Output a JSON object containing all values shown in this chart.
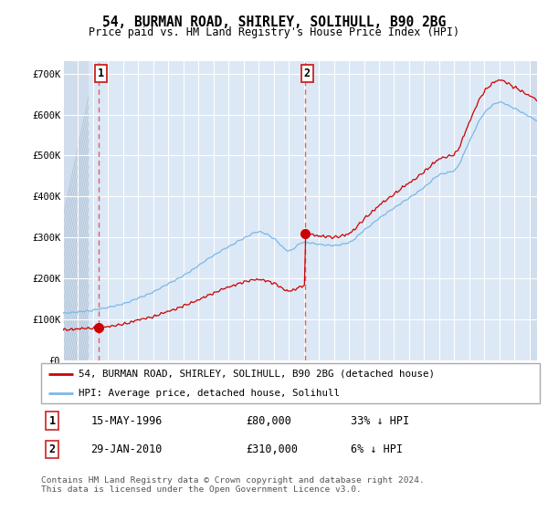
{
  "title": "54, BURMAN ROAD, SHIRLEY, SOLIHULL, B90 2BG",
  "subtitle": "Price paid vs. HM Land Registry's House Price Index (HPI)",
  "ylim": [
    0,
    730000
  ],
  "xlim": [
    1994.0,
    2025.5
  ],
  "yticks": [
    0,
    100000,
    200000,
    300000,
    400000,
    500000,
    600000,
    700000
  ],
  "ytick_labels": [
    "£0",
    "£100K",
    "£200K",
    "£300K",
    "£400K",
    "£500K",
    "£600K",
    "£700K"
  ],
  "sale1_x": 1996.37,
  "sale1_y": 80000,
  "sale2_x": 2010.08,
  "sale2_y": 310000,
  "hpi_color": "#7ab8e8",
  "sale_color": "#cc0000",
  "marker_color": "#cc0000",
  "vline_color": "#e06060",
  "legend_label1": "54, BURMAN ROAD, SHIRLEY, SOLIHULL, B90 2BG (detached house)",
  "legend_label2": "HPI: Average price, detached house, Solihull",
  "table_row1": [
    "1",
    "15-MAY-1996",
    "£80,000",
    "33% ↓ HPI"
  ],
  "table_row2": [
    "2",
    "29-JAN-2010",
    "£310,000",
    "6% ↓ HPI"
  ],
  "footnote": "Contains HM Land Registry data © Crown copyright and database right 2024.\nThis data is licensed under the Open Government Licence v3.0.",
  "background_color": "#dce8f5",
  "hatch_color": "#b0c4d8",
  "grid_color": "#ffffff"
}
